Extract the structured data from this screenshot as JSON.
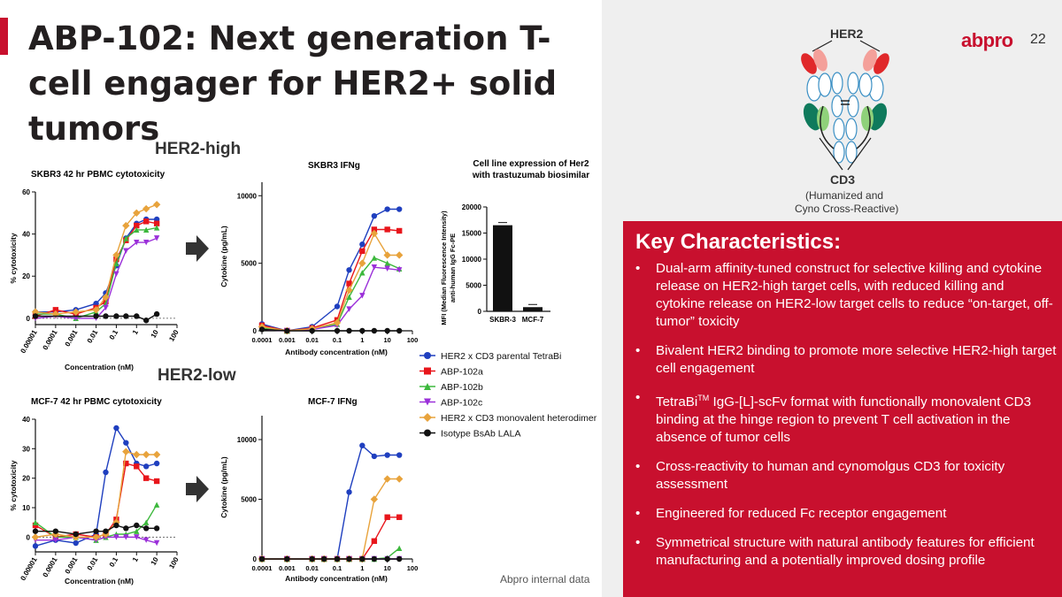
{
  "slide": {
    "title": "ABP-102: Next generation T-cell engager for HER2+ solid tumors",
    "page_number": "22",
    "logo": "abpro",
    "footer": "Abpro internal data"
  },
  "diagram": {
    "her2_label": "HER2",
    "cd3_label": "CD3",
    "cd3_sub1": "(Humanized and",
    "cd3_sub2": "Cyno Cross-Reactive)"
  },
  "sections": {
    "her2_high": "HER2-high",
    "her2_low": "HER2-low"
  },
  "key_characteristics": {
    "title": "Key Characteristics:",
    "bullet_symbol": "•",
    "items": [
      {
        "text": "Dual-arm affinity-tuned construct for selective killing and cytokine release on HER2-high target cells, with reduced killing and cytokine release on HER2-low target cells to reduce “on-target, off-tumor” toxicity"
      },
      {
        "text": "Bivalent HER2 binding to promote more selective HER2-high target cell engagement"
      },
      {
        "pre": "TetraBi",
        "sup": "TM",
        "post": " IgG-[L]-scFv format with functionally monovalent CD3 binding at the hinge region to prevent T cell activation in the absence of tumor cells"
      },
      {
        "text": "Cross-reactivity to human and cynomolgus CD3 for toxicity assessment"
      },
      {
        "text": "Engineered for reduced Fc receptor engagement"
      },
      {
        "text": "Symmetrical structure with natural antibody features for efficient manufacturing and a potentially improved dosing profile"
      }
    ]
  },
  "colors": {
    "accent": "#c8102e",
    "series": [
      "#1f3fbf",
      "#e8151b",
      "#3cb83c",
      "#9b30d9",
      "#e8a33c",
      "#111111"
    ]
  },
  "legend": [
    {
      "name": "HER2 x CD3 parental TetraBi",
      "marker": "circle"
    },
    {
      "name": "ABP-102a",
      "marker": "square"
    },
    {
      "name": "ABP-102b",
      "marker": "triangle-up"
    },
    {
      "name": "ABP-102c",
      "marker": "triangle-down"
    },
    {
      "name": "HER2 x CD3 monovalent heterodimer",
      "marker": "diamond"
    },
    {
      "name": "Isotype BsAb LALA",
      "marker": "circle"
    }
  ],
  "chart_data": [
    {
      "id": "skbr3-cyto",
      "type": "scatter",
      "title": "SKBR3 42 hr PBMC cytotoxicity",
      "xlabel": "Concentration (nM)",
      "ylabel": "% cytotoxicity",
      "xscale": "log",
      "x_ticks": [
        "0.00001",
        "0.0001",
        "0.001",
        "0.01",
        "0.1",
        "1",
        "10",
        "100"
      ],
      "x_tick_values": [
        1e-05,
        0.0001,
        0.001,
        0.01,
        0.1,
        1,
        10,
        100
      ],
      "y_ticks": [
        "0",
        "20",
        "40",
        "60"
      ],
      "ylim": [
        -3,
        60
      ],
      "xlim": [
        1e-05,
        100
      ],
      "x": [
        1e-05,
        0.0001,
        0.001,
        0.01,
        0.03,
        0.1,
        0.3,
        1,
        3,
        10
      ],
      "series": [
        {
          "values": [
            3,
            3,
            4,
            7,
            12,
            25,
            38,
            45,
            47,
            47
          ]
        },
        {
          "values": [
            1,
            4,
            2,
            5,
            8,
            28,
            37,
            44,
            46,
            45
          ]
        },
        {
          "values": [
            2,
            2,
            0,
            3,
            7,
            26,
            38,
            42,
            42,
            43
          ]
        },
        {
          "values": [
            0,
            1,
            0,
            0,
            5,
            21,
            32,
            36,
            36,
            38
          ]
        },
        {
          "values": [
            3,
            2,
            3,
            4,
            10,
            30,
            44,
            50,
            52,
            54
          ]
        },
        {
          "values": [
            1,
            null,
            null,
            1,
            1,
            1,
            1,
            1,
            -1,
            2
          ]
        }
      ]
    },
    {
      "id": "skbr3-ifng",
      "type": "line",
      "title": "SKBR3 IFNg",
      "xlabel": "Antibody concentration (nM)",
      "ylabel": "Cytokine (pg/mL)",
      "xscale": "log",
      "x_ticks": [
        "0.0001",
        "0.001",
        "0.01",
        "0.1",
        "1",
        "10",
        "100"
      ],
      "x_tick_values": [
        0.0001,
        0.001,
        0.01,
        0.1,
        1,
        10,
        100
      ],
      "y_ticks": [
        "0",
        "5000",
        "10000"
      ],
      "ylim": [
        0,
        11000
      ],
      "xlim": [
        0.0001,
        100
      ],
      "x": [
        0.0001,
        0.001,
        0.01,
        0.1,
        0.3,
        1,
        3,
        10,
        30
      ],
      "series": [
        {
          "values": [
            500,
            0,
            300,
            1800,
            4500,
            6400,
            8500,
            9000,
            9000
          ]
        },
        {
          "values": [
            400,
            0,
            200,
            800,
            3500,
            5900,
            7500,
            7500,
            7400
          ]
        },
        {
          "values": [
            200,
            0,
            100,
            500,
            2500,
            4300,
            5400,
            5000,
            4600
          ]
        },
        {
          "values": [
            100,
            0,
            100,
            400,
            1600,
            2600,
            4700,
            4600,
            4500
          ]
        },
        {
          "values": [
            300,
            0,
            150,
            600,
            3000,
            5000,
            7200,
            5600,
            5600
          ]
        },
        {
          "values": [
            100,
            0,
            0,
            0,
            0,
            0,
            0,
            0,
            0
          ]
        }
      ]
    },
    {
      "id": "her2-expression",
      "type": "bar",
      "title": "Cell line expression of Her2 with trastuzumab biosimilar",
      "ylabel": "MFI (Median Fluorescence Intensity) anti-human IgG Fc-PE",
      "categories": [
        "SKBR-3",
        "MCF-7"
      ],
      "values": [
        16500,
        800
      ],
      "y_ticks": [
        "0",
        "5000",
        "10000",
        "15000",
        "20000"
      ],
      "ylim": [
        0,
        20000
      ]
    },
    {
      "id": "mcf7-cyto",
      "type": "scatter",
      "title": "MCF-7 42 hr PBMC cytotoxicity",
      "xlabel": "Concentration (nM)",
      "ylabel": "% cytotoxicity",
      "xscale": "log",
      "x_ticks": [
        "0.00001",
        "0.0001",
        "0.001",
        "0.01",
        "0.1",
        "1",
        "10",
        "100"
      ],
      "x_tick_values": [
        1e-05,
        0.0001,
        0.001,
        0.01,
        0.1,
        1,
        10,
        100
      ],
      "y_ticks": [
        "0",
        "10",
        "20",
        "30",
        "40"
      ],
      "ylim": [
        -5,
        40
      ],
      "xlim": [
        1e-05,
        100
      ],
      "x": [
        1e-05,
        0.0001,
        0.001,
        0.01,
        0.03,
        0.1,
        0.3,
        1,
        3,
        10
      ],
      "series": [
        {
          "values": [
            -3,
            -1,
            -2,
            1,
            22,
            37,
            32,
            25,
            24,
            25
          ]
        },
        {
          "values": [
            4,
            0,
            1,
            0,
            1,
            6,
            25,
            24,
            20,
            19
          ]
        },
        {
          "values": [
            5,
            0,
            0,
            -1,
            0,
            1,
            1,
            2,
            5,
            11
          ]
        },
        {
          "values": [
            -1,
            -1,
            0,
            -1,
            0,
            0,
            0,
            0,
            -1,
            -2
          ]
        },
        {
          "values": [
            0,
            1,
            0,
            0,
            1,
            5,
            29,
            28,
            28,
            28
          ]
        },
        {
          "values": [
            2,
            2,
            1,
            2,
            2,
            4,
            3,
            4,
            3,
            3
          ]
        }
      ]
    },
    {
      "id": "mcf7-ifng",
      "type": "line",
      "title": "MCF-7 IFNg",
      "xlabel": "Antibody concentration (nM)",
      "ylabel": "Cytokine (pg/mL)",
      "xscale": "log",
      "x_ticks": [
        "0.0001",
        "0.001",
        "0.01",
        "0.1",
        "1",
        "10",
        "100"
      ],
      "x_tick_values": [
        0.0001,
        0.001,
        0.01,
        0.1,
        1,
        10,
        100
      ],
      "y_ticks": [
        "0",
        "5000",
        "10000"
      ],
      "ylim": [
        0,
        12000
      ],
      "xlim": [
        0.0001,
        100
      ],
      "x": [
        0.0001,
        0.001,
        0.01,
        0.03,
        0.1,
        0.3,
        1,
        3,
        10,
        30
      ],
      "series": [
        {
          "values": [
            0,
            0,
            0,
            0,
            0,
            5600,
            9500,
            8600,
            8700,
            8700
          ]
        },
        {
          "values": [
            0,
            0,
            0,
            0,
            0,
            0,
            0,
            1500,
            3500,
            3500
          ]
        },
        {
          "values": [
            0,
            0,
            0,
            0,
            0,
            0,
            0,
            0,
            100,
            900
          ]
        },
        {
          "values": [
            0,
            0,
            0,
            0,
            0,
            0,
            0,
            0,
            0,
            0
          ]
        },
        {
          "values": [
            0,
            0,
            0,
            0,
            0,
            0,
            0,
            5000,
            6700,
            6700
          ]
        },
        {
          "values": [
            0,
            0,
            0,
            0,
            0,
            0,
            0,
            0,
            0,
            0
          ]
        }
      ]
    }
  ]
}
